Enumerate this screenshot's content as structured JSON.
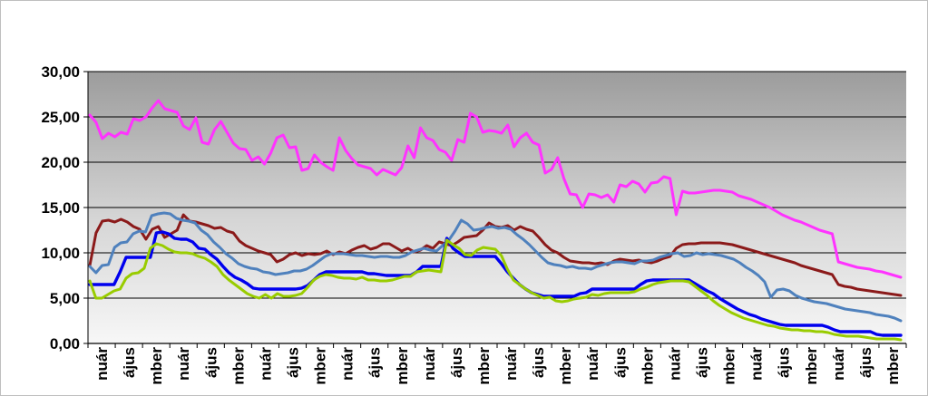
{
  "chart_data": {
    "type": "line",
    "ylim": [
      0,
      30
    ],
    "yticks": [
      "0,00",
      "5,00",
      "10,00",
      "15,00",
      "20,00",
      "25,00",
      "30,00"
    ],
    "grid": true,
    "legend": "none",
    "x_tick_labels": [
      "nuár",
      "ájus",
      "mber",
      "nuár",
      "ájus",
      "mber",
      "nuár",
      "ájus",
      "mber",
      "nuár",
      "ájus",
      "mber",
      "nuár",
      "ájus",
      "mber",
      "nuár",
      "ájus",
      "mber",
      "nuár",
      "ájus",
      "mber",
      "nuár",
      "ájus",
      "mber",
      "nuár",
      "ájus",
      "mber",
      "nuár",
      "ájus",
      "mber"
    ],
    "colors": {
      "magenta": "#ff33ff",
      "darkred": "#8b1a1a",
      "lightblue": "#4f81bd",
      "blue": "#0000ee",
      "green": "#99cc00"
    },
    "series": [
      {
        "color": "#ff33ff",
        "values": [
          25.2,
          24.4,
          22.6,
          23.2,
          22.8,
          23.3,
          23.1,
          24.8,
          24.6,
          25.0,
          26.0,
          26.8,
          25.9,
          25.7,
          25.5,
          24.0,
          23.6,
          24.9,
          22.2,
          22.0,
          23.6,
          24.5,
          23.3,
          22.1,
          21.5,
          21.4,
          20.2,
          20.6,
          19.8,
          21.0,
          22.7,
          23.0,
          21.6,
          21.7,
          19.1,
          19.3,
          20.8,
          20.0,
          19.5,
          19.1,
          22.7,
          21.3,
          20.4,
          19.7,
          19.5,
          19.3,
          18.6,
          19.2,
          18.9,
          18.6,
          19.4,
          21.8,
          20.5,
          23.8,
          22.7,
          22.4,
          21.4,
          21.1,
          20.2,
          22.5,
          22.2,
          25.4,
          25.0,
          23.3,
          23.5,
          23.4,
          23.2,
          24.1,
          21.7,
          22.7,
          23.2,
          22.2,
          21.9,
          18.8,
          19.2,
          20.5,
          18.2,
          16.5,
          16.4,
          15.0,
          16.5,
          16.4,
          16.1,
          16.4,
          15.6,
          17.5,
          17.3,
          17.9,
          17.6,
          16.7,
          17.7,
          17.8,
          18.4,
          18.2,
          14.2,
          16.8,
          16.6,
          16.6,
          16.7,
          16.8,
          16.9,
          16.9,
          16.8,
          16.7,
          16.3,
          16.1,
          15.9,
          15.6,
          15.3,
          15.0,
          14.6,
          14.2,
          13.9,
          13.6,
          13.4,
          13.1,
          12.8,
          12.5,
          12.3,
          12.1,
          9.0,
          8.8,
          8.6,
          8.4,
          8.3,
          8.2,
          8.0,
          7.9,
          7.7,
          7.5,
          7.3
        ]
      },
      {
        "color": "#8b1a1a",
        "values": [
          8.6,
          12.2,
          13.5,
          13.6,
          13.4,
          13.7,
          13.4,
          12.9,
          12.6,
          11.5,
          12.6,
          12.9,
          11.7,
          12.1,
          12.5,
          14.2,
          13.5,
          13.4,
          13.2,
          13.0,
          12.7,
          12.8,
          12.4,
          12.2,
          11.3,
          10.8,
          10.5,
          10.2,
          10.0,
          9.8,
          9.0,
          9.3,
          9.8,
          10.0,
          9.7,
          9.9,
          9.8,
          9.9,
          10.2,
          9.8,
          10.1,
          9.9,
          10.3,
          10.6,
          10.8,
          10.4,
          10.6,
          11.0,
          11.0,
          10.6,
          10.2,
          10.5,
          10.1,
          10.3,
          10.8,
          10.5,
          11.2,
          11.0,
          10.8,
          11.2,
          11.7,
          11.8,
          11.9,
          12.5,
          13.3,
          12.9,
          12.8,
          13.0,
          12.5,
          12.9,
          12.6,
          12.4,
          11.7,
          10.9,
          10.3,
          10.0,
          9.5,
          9.1,
          9.0,
          8.9,
          8.9,
          8.8,
          8.9,
          8.7,
          9.1,
          9.3,
          9.2,
          9.1,
          9.2,
          9.0,
          8.9,
          9.1,
          9.4,
          9.6,
          10.5,
          10.9,
          11.0,
          11.0,
          11.1,
          11.1,
          11.1,
          11.1,
          11.0,
          10.9,
          10.7,
          10.5,
          10.3,
          10.1,
          9.9,
          9.7,
          9.5,
          9.3,
          9.1,
          8.9,
          8.6,
          8.4,
          8.2,
          8.0,
          7.8,
          7.6,
          6.5,
          6.3,
          6.2,
          6.0,
          5.9,
          5.8,
          5.7,
          5.6,
          5.5,
          5.4,
          5.3
        ]
      },
      {
        "color": "#4f81bd",
        "values": [
          8.5,
          7.8,
          8.6,
          8.7,
          10.6,
          11.1,
          11.2,
          12.1,
          12.4,
          12.3,
          14.1,
          14.3,
          14.4,
          14.3,
          13.8,
          13.6,
          13.5,
          13.3,
          12.5,
          12.0,
          11.2,
          10.6,
          9.9,
          9.4,
          8.8,
          8.5,
          8.3,
          8.2,
          7.9,
          7.8,
          7.6,
          7.7,
          7.8,
          8.0,
          8.0,
          8.2,
          8.6,
          9.1,
          9.6,
          9.9,
          9.9,
          9.9,
          9.8,
          9.7,
          9.7,
          9.6,
          9.5,
          9.6,
          9.6,
          9.5,
          9.5,
          9.7,
          10.1,
          10.3,
          10.5,
          10.3,
          10.2,
          10.8,
          11.4,
          12.4,
          13.6,
          13.2,
          12.5,
          12.6,
          12.8,
          12.9,
          12.7,
          12.8,
          12.6,
          12.0,
          11.5,
          10.9,
          10.2,
          9.5,
          8.9,
          8.7,
          8.6,
          8.4,
          8.5,
          8.3,
          8.3,
          8.2,
          8.5,
          8.7,
          8.9,
          9.0,
          9.0,
          8.9,
          8.8,
          9.1,
          9.1,
          9.2,
          9.5,
          9.7,
          9.9,
          10.0,
          9.6,
          9.7,
          10.0,
          9.8,
          9.9,
          9.8,
          9.7,
          9.5,
          9.3,
          8.9,
          8.4,
          8.0,
          7.5,
          6.8,
          5.1,
          5.9,
          6.0,
          5.8,
          5.3,
          5.0,
          4.8,
          4.6,
          4.5,
          4.4,
          4.2,
          4.0,
          3.8,
          3.7,
          3.6,
          3.5,
          3.4,
          3.2,
          3.1,
          3.0,
          2.8,
          2.5
        ]
      },
      {
        "color": "#0000ee",
        "values": [
          6.5,
          6.5,
          6.5,
          6.5,
          6.5,
          7.9,
          9.5,
          9.5,
          9.5,
          9.5,
          9.5,
          12.2,
          12.3,
          12.1,
          11.6,
          11.5,
          11.5,
          11.2,
          10.5,
          10.4,
          9.8,
          9.3,
          8.5,
          7.8,
          7.3,
          7.0,
          6.6,
          6.1,
          6.0,
          6.0,
          6.0,
          6.0,
          6.0,
          6.0,
          6.0,
          6.1,
          6.4,
          7.0,
          7.6,
          7.9,
          7.9,
          7.9,
          7.9,
          7.9,
          7.9,
          7.9,
          7.7,
          7.7,
          7.6,
          7.5,
          7.5,
          7.5,
          7.5,
          7.5,
          7.9,
          8.5,
          8.5,
          8.5,
          8.5,
          11.6,
          10.5,
          10.0,
          9.6,
          9.6,
          9.6,
          9.6,
          9.6,
          9.6,
          8.8,
          7.9,
          7.2,
          6.5,
          6.0,
          5.6,
          5.4,
          5.2,
          5.2,
          5.2,
          5.2,
          5.2,
          5.2,
          5.5,
          5.6,
          6.0,
          6.0,
          6.0,
          6.0,
          6.0,
          6.0,
          6.0,
          6.0,
          6.5,
          6.9,
          7.0,
          7.0,
          7.0,
          7.0,
          7.0,
          7.0,
          7.0,
          6.6,
          6.2,
          5.8,
          5.5,
          5.0,
          4.6,
          4.2,
          3.8,
          3.5,
          3.2,
          3.0,
          2.7,
          2.5,
          2.3,
          2.1,
          2.0,
          2.0,
          2.0,
          2.0,
          2.0,
          2.0,
          2.0,
          1.8,
          1.5,
          1.3,
          1.3,
          1.3,
          1.3,
          1.3,
          1.3,
          1.0,
          0.9,
          0.9,
          0.9,
          0.9
        ]
      },
      {
        "color": "#99cc00",
        "values": [
          6.9,
          5.0,
          5.0,
          5.4,
          5.8,
          6.0,
          7.2,
          7.7,
          7.8,
          8.3,
          10.5,
          11.0,
          10.8,
          10.4,
          10.1,
          10.0,
          10.0,
          9.9,
          9.6,
          9.4,
          9.0,
          8.5,
          7.6,
          7.0,
          6.5,
          6.0,
          5.5,
          5.2,
          5.0,
          5.4,
          5.0,
          5.5,
          5.2,
          5.2,
          5.3,
          5.5,
          6.2,
          7.0,
          7.4,
          7.6,
          7.5,
          7.3,
          7.2,
          7.2,
          7.1,
          7.3,
          7.0,
          7.0,
          6.9,
          6.9,
          7.0,
          7.2,
          7.4,
          7.4,
          7.9,
          8.0,
          8.1,
          8.0,
          7.9,
          11.4,
          10.9,
          10.5,
          9.8,
          9.7,
          10.3,
          10.6,
          10.5,
          10.4,
          9.7,
          8.2,
          7.0,
          6.5,
          6.0,
          5.6,
          5.3,
          5.0,
          5.1,
          4.7,
          4.6,
          4.7,
          4.9,
          5.0,
          5.1,
          5.4,
          5.3,
          5.5,
          5.6,
          5.6,
          5.6,
          5.6,
          5.7,
          6.0,
          6.2,
          6.5,
          6.7,
          6.8,
          6.9,
          6.9,
          6.9,
          6.8,
          6.3,
          5.8,
          5.3,
          4.7,
          4.2,
          3.8,
          3.4,
          3.1,
          2.8,
          2.6,
          2.4,
          2.2,
          2.0,
          1.9,
          1.7,
          1.6,
          1.5,
          1.5,
          1.4,
          1.4,
          1.3,
          1.3,
          1.2,
          1.0,
          0.9,
          0.8,
          0.8,
          0.8,
          0.7,
          0.6,
          0.5,
          0.5,
          0.5,
          0.5,
          0.4
        ]
      }
    ]
  }
}
